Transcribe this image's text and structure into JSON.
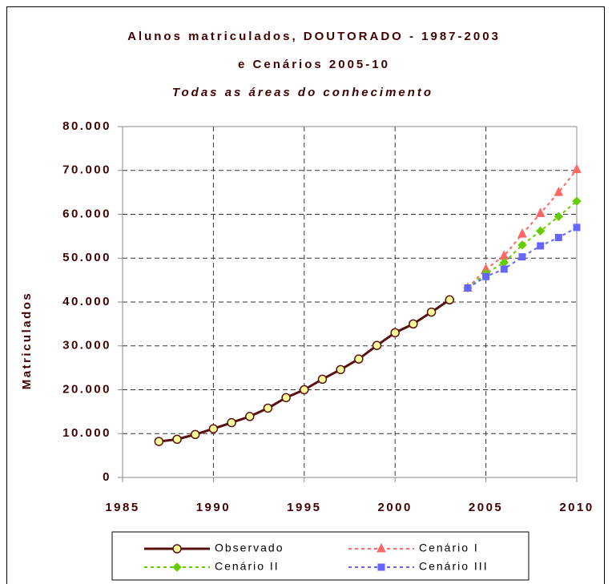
{
  "chart_data": {
    "type": "line",
    "title": [
      "Alunos matriculados, DOUTORADO - 1987-2003",
      "e Cenários 2005-10",
      "Todas as áreas do conhecimento"
    ],
    "ylabel": "Matriculados",
    "x": [
      1987,
      1988,
      1989,
      1990,
      1991,
      1992,
      1993,
      1994,
      1995,
      1996,
      1997,
      1998,
      1999,
      2000,
      2001,
      2002,
      2003,
      2004,
      2005,
      2006,
      2007,
      2008,
      2009,
      2010
    ],
    "series": [
      {
        "name": "Observado",
        "color": "#5a0f0f",
        "marker": "circle",
        "dashed": false,
        "values": [
          8200,
          8700,
          9800,
          11100,
          12500,
          13900,
          15800,
          18200,
          20000,
          22400,
          24600,
          27000,
          30100,
          33000,
          35000,
          37700,
          40500,
          null,
          null,
          null,
          null,
          null,
          null,
          null
        ]
      },
      {
        "name": "Cenário I",
        "color": "#ff6666",
        "marker": "triangle",
        "dashed": true,
        "values": [
          null,
          null,
          null,
          null,
          null,
          null,
          null,
          null,
          null,
          null,
          null,
          null,
          null,
          null,
          null,
          null,
          null,
          43200,
          47500,
          50500,
          55500,
          60200,
          65000,
          70200
        ]
      },
      {
        "name": "Cenário II",
        "color": "#66cc00",
        "marker": "diamond",
        "dashed": true,
        "values": [
          null,
          null,
          null,
          null,
          null,
          null,
          null,
          null,
          null,
          null,
          null,
          null,
          null,
          null,
          null,
          null,
          null,
          43200,
          46500,
          49000,
          53000,
          56200,
          59500,
          63000
        ]
      },
      {
        "name": "Cenário III",
        "color": "#6666ff",
        "marker": "square",
        "dashed": true,
        "values": [
          null,
          null,
          null,
          null,
          null,
          null,
          null,
          null,
          null,
          null,
          null,
          null,
          null,
          null,
          null,
          null,
          null,
          43200,
          45800,
          47500,
          50300,
          52800,
          54700,
          57000
        ]
      }
    ],
    "xlim": [
      1985,
      2010
    ],
    "xticks": [
      1985,
      1990,
      1995,
      2000,
      2005,
      2010
    ],
    "ylim": [
      0,
      80000
    ],
    "yticks": [
      0,
      {
        "value": 10000,
        "label": "10.000"
      },
      {
        "value": 20000,
        "label": "20.000"
      },
      {
        "value": 30000,
        "label": "30.000"
      },
      {
        "value": 40000,
        "label": "40.000"
      },
      {
        "value": 50000,
        "label": "50.000"
      },
      {
        "value": 60000,
        "label": "60.000"
      },
      {
        "value": 70000,
        "label": "70.000"
      },
      {
        "value": 80000,
        "label": "80.000"
      }
    ],
    "grid": true,
    "legend": "bottom"
  }
}
